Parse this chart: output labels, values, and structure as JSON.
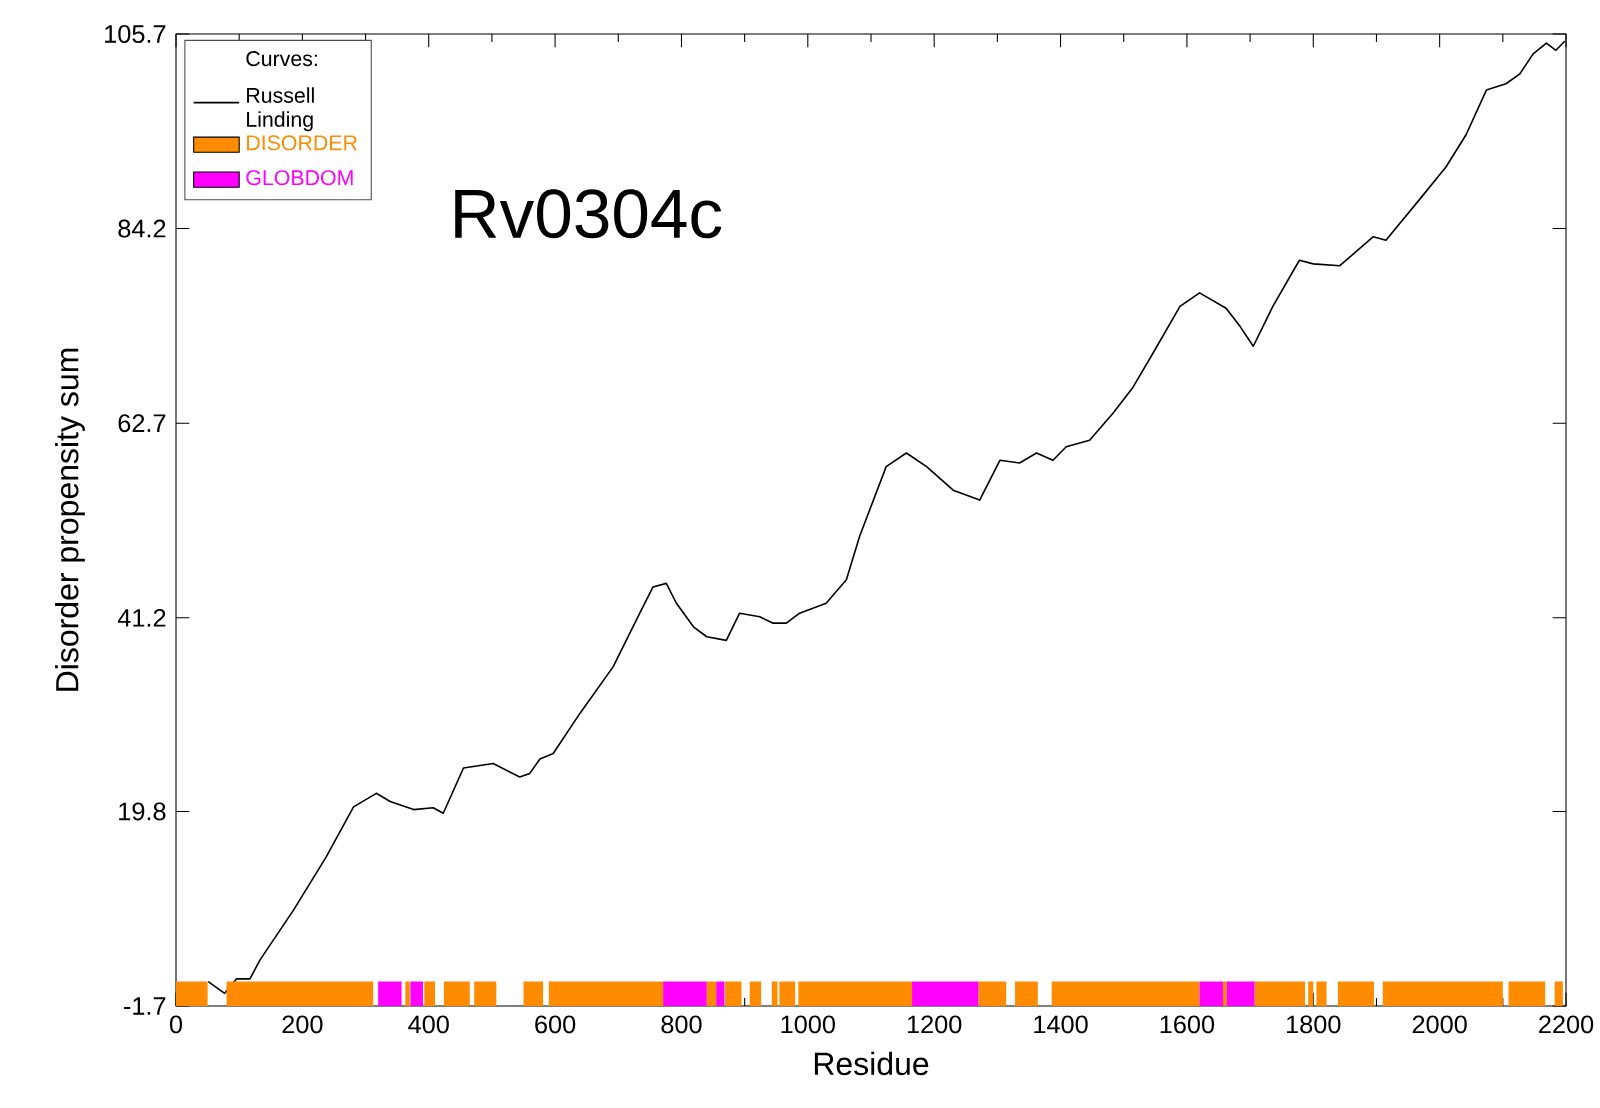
{
  "chart_data": {
    "type": "line",
    "xlabel": "Residue",
    "ylabel": "Disorder propensity sum",
    "legend_title": "Curves:",
    "legend": "top left",
    "annotations": [
      "Rv0304c"
    ],
    "xlim": [
      0,
      2200
    ],
    "ylim": [
      -1.7,
      105.7
    ],
    "xticks": [
      0,
      200,
      400,
      600,
      800,
      1000,
      1200,
      1400,
      1600,
      1800,
      2000,
      2200
    ],
    "yticks": [
      -1.7,
      19.8,
      41.2,
      62.7,
      84.2,
      105.7
    ],
    "series": [
      {
        "name": "Russell Linding",
        "color": "#000000",
        "line_style": "solid",
        "x": [
          51,
          77,
          96,
          117,
          133,
          186,
          238,
          281,
          317,
          339,
          376,
          407,
          423,
          455,
          502,
          544,
          560,
          576,
          597,
          639,
          692,
          734,
          755,
          776,
          792,
          819,
          840,
          871,
          892,
          924,
          945,
          966,
          987,
          1029,
          1061,
          1082,
          1124,
          1156,
          1188,
          1230,
          1272,
          1304,
          1335,
          1362,
          1388,
          1409,
          1446,
          1483,
          1515,
          1546,
          1589,
          1620,
          1662,
          1684,
          1705,
          1736,
          1778,
          1800,
          1842,
          1895,
          1915,
          1968,
          2010,
          2042,
          2074,
          2105,
          2127,
          2148,
          2169,
          2184,
          2198
        ],
        "values": [
          1.0,
          -0.3,
          1.3,
          1.3,
          3.4,
          8.9,
          14.8,
          20.3,
          21.8,
          20.9,
          20.0,
          20.2,
          19.6,
          24.6,
          25.1,
          23.6,
          24.0,
          25.6,
          26.2,
          30.6,
          35.8,
          41.7,
          44.6,
          45.0,
          42.8,
          40.2,
          39.1,
          38.7,
          41.7,
          41.3,
          40.6,
          40.6,
          41.7,
          42.8,
          45.4,
          50.2,
          57.9,
          59.4,
          57.9,
          55.3,
          54.2,
          58.6,
          58.3,
          59.4,
          58.6,
          60.1,
          60.8,
          63.8,
          66.7,
          70.4,
          75.6,
          77.1,
          75.4,
          73.4,
          71.2,
          75.6,
          80.7,
          80.3,
          80.1,
          83.3,
          82.9,
          87.4,
          91.0,
          94.6,
          99.5,
          100.2,
          101.3,
          103.5,
          104.7,
          103.9,
          104.9
        ]
      },
      {
        "name": "DISORDER",
        "type": "area",
        "color": "#ff8c00",
        "x": [
          0,
          0,
          50,
          50,
          80,
          80,
          312,
          312,
          363,
          363,
          370,
          370,
          393,
          393,
          410,
          410,
          424,
          424,
          465,
          465,
          472,
          472,
          507,
          507,
          550,
          550,
          581,
          581,
          590,
          590,
          771,
          771,
          840,
          840,
          855,
          855,
          869,
          869,
          895,
          895,
          908,
          908,
          926,
          926,
          943,
          943,
          952,
          952,
          955,
          955,
          980,
          980,
          985,
          985,
          1165,
          1165,
          1270,
          1270,
          1314,
          1314,
          1328,
          1328,
          1364,
          1364,
          1386,
          1386,
          1620,
          1620,
          1657,
          1657,
          1663,
          1663,
          1707,
          1707,
          1787,
          1787,
          1792,
          1792,
          1800,
          1800,
          1805,
          1805,
          1821,
          1821,
          1839,
          1839,
          1896,
          1896,
          1910,
          1910,
          2100,
          2100,
          2109,
          2109,
          2167,
          2167,
          2182,
          2182,
          2195,
          2195
        ],
        "values": [
          -1.7,
          1,
          1,
          -1.7,
          -1.7,
          1,
          1,
          -1.7,
          -1.7,
          1,
          1,
          -1.7,
          -1.7,
          1,
          1,
          -1.7,
          -1.7,
          1,
          1,
          -1.7,
          -1.7,
          1,
          1,
          -1.7,
          -1.7,
          1,
          1,
          -1.7,
          -1.7,
          1,
          1,
          -1.7,
          -1.7,
          1,
          1,
          -1.7,
          -1.7,
          1,
          1,
          -1.7,
          -1.7,
          1,
          1,
          -1.7,
          -1.7,
          1,
          1,
          -1.7,
          -1.7,
          1,
          1,
          -1.7,
          -1.7,
          1,
          1,
          -1.7,
          -1.7,
          1,
          1,
          -1.7,
          -1.7,
          1,
          1,
          -1.7,
          -1.7,
          1,
          1,
          -1.7,
          -1.7,
          1,
          1,
          -1.7,
          -1.7,
          1,
          1,
          -1.7,
          -1.7,
          1,
          1,
          -1.7,
          -1.7,
          1,
          1,
          -1.7,
          -1.7,
          1,
          1,
          -1.7,
          -1.7,
          1,
          1,
          -1.7,
          -1.7,
          1,
          1,
          -1.7,
          -1.7,
          1,
          1,
          -1.7
        ]
      },
      {
        "name": "GLOBDOM",
        "type": "area",
        "color": "#ff00ff",
        "x": [
          320,
          320,
          357,
          357,
          371,
          371,
          391,
          391,
          771,
          771,
          840,
          840,
          855,
          855,
          868,
          868,
          1165,
          1165,
          1270,
          1270,
          1620,
          1620,
          1657,
          1657,
          1663,
          1663,
          1707,
          1707
        ],
        "values": [
          -1.7,
          1,
          1,
          -1.7,
          -1.7,
          1,
          1,
          -1.7,
          -1.7,
          1,
          1,
          -1.7,
          -1.7,
          1,
          1,
          -1.7,
          -1.7,
          1,
          1,
          -1.7,
          -1.7,
          1,
          1,
          -1.7,
          -1.7,
          1,
          1,
          -1.7
        ]
      }
    ]
  }
}
